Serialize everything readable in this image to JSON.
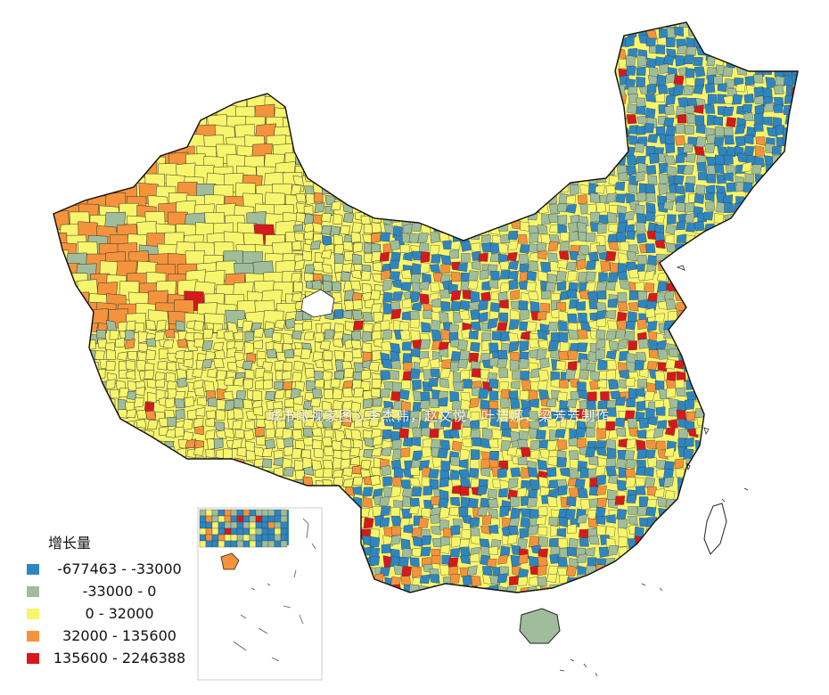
{
  "watermark": "城市瞰视家图以李杰伟，赵文悦，叶洁娜，梁芳芳制作",
  "legend": {
    "title": "增长量",
    "items": [
      {
        "label": "-677463 - -33000",
        "color": "#2e86c1"
      },
      {
        "label": "-33000 - 0",
        "color": "#9fbd9a"
      },
      {
        "label": "0 - 32000",
        "color": "#f7f56b"
      },
      {
        "label": "32000 - 135600",
        "color": "#f4933b"
      },
      {
        "label": "135600 - 2246388",
        "color": "#d7191c"
      }
    ]
  },
  "colors": {
    "blue": "#2e86c1",
    "green": "#9fbd9a",
    "yellow": "#f7f56b",
    "orange": "#f4933b",
    "red": "#d7191c",
    "border": "#333333"
  }
}
